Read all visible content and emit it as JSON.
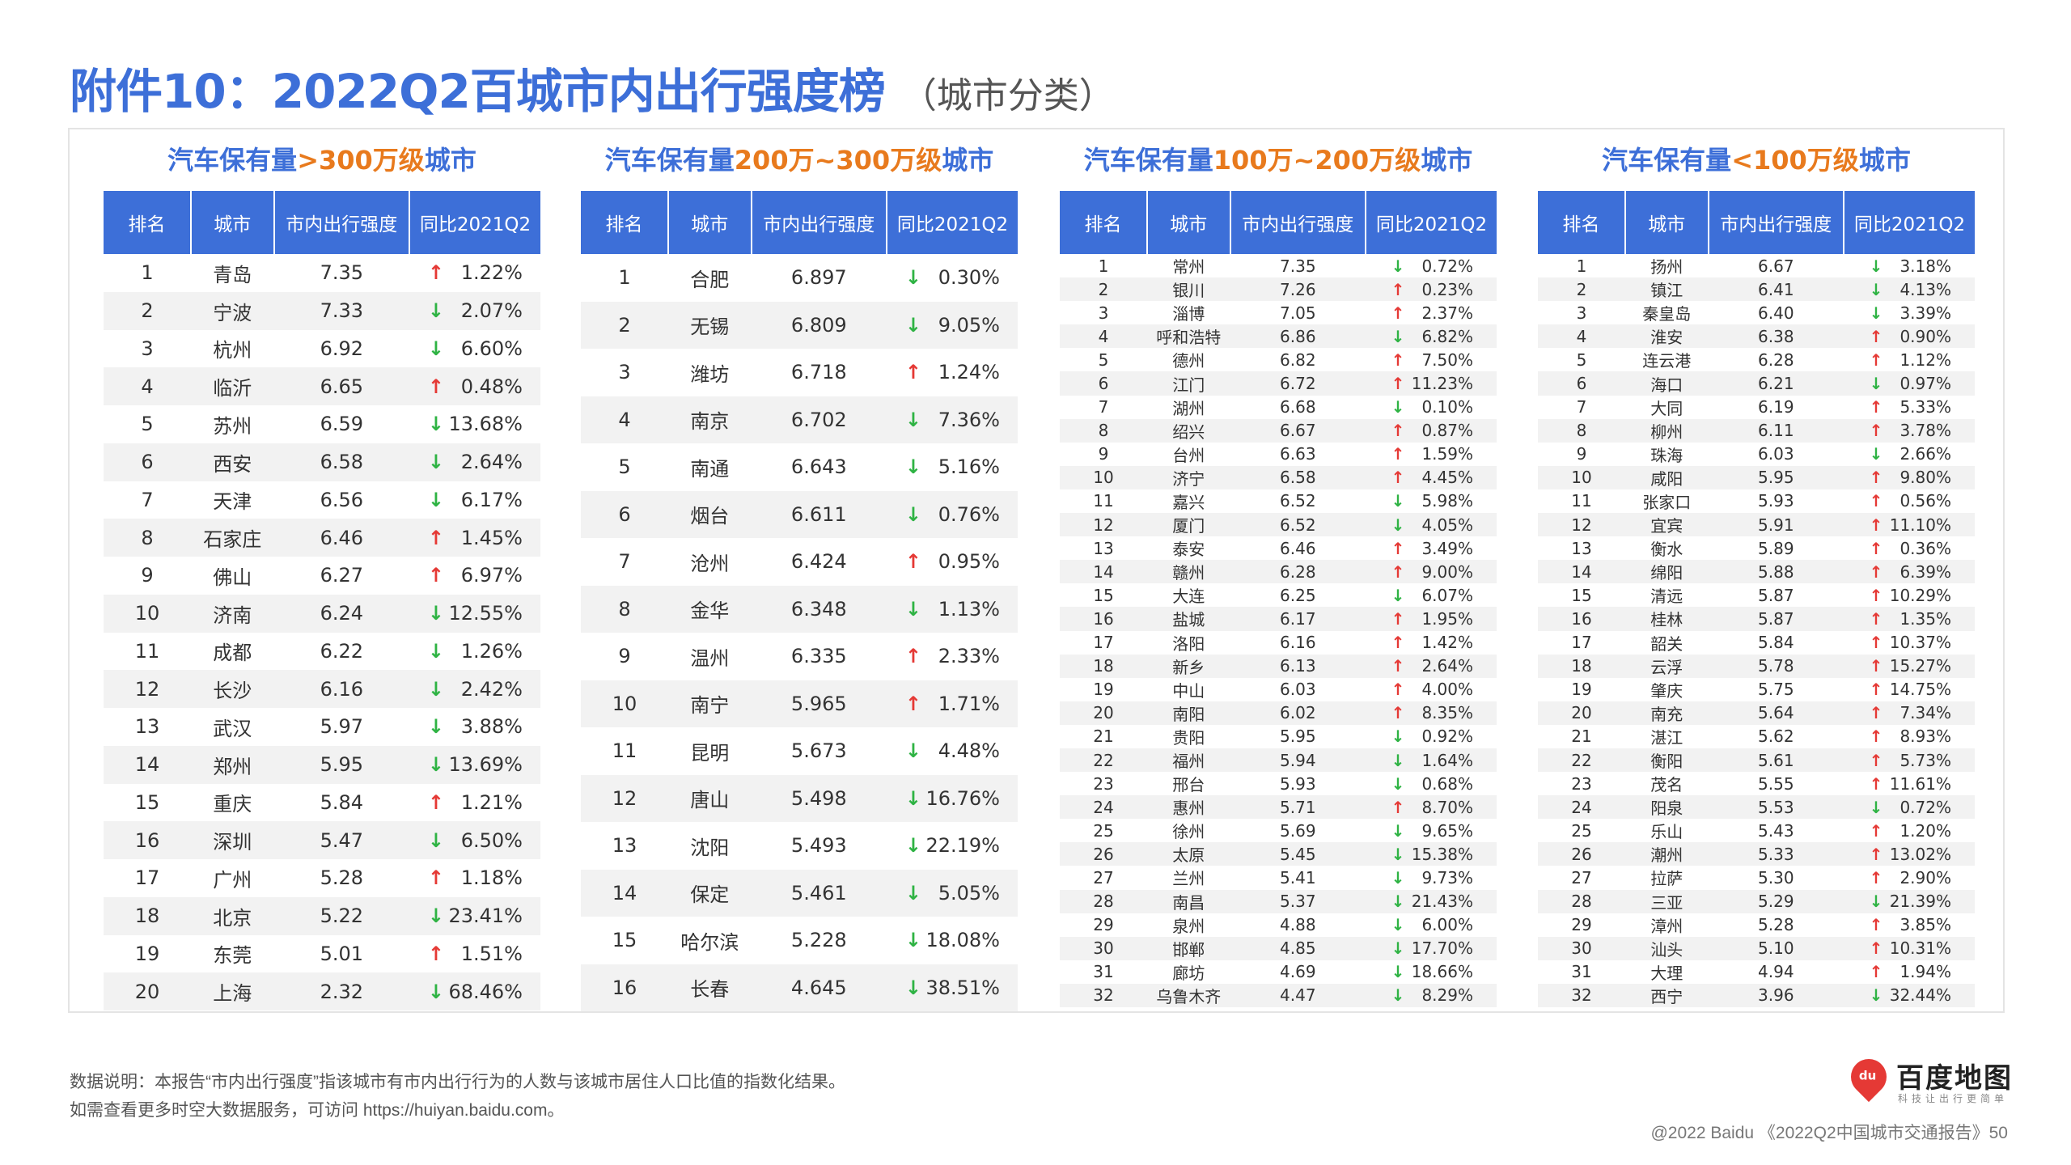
{
  "page": {
    "title": "附件10：2022Q2百城市内出行强度榜",
    "subtitle": "（城市分类）"
  },
  "columns": [
    "排名",
    "城市",
    "市内出行强度",
    "同比2021Q2"
  ],
  "groups": [
    {
      "title_prefix": "汽车保有量",
      "title_highlight": ">300万级",
      "title_suffix": "城市",
      "rows": [
        {
          "rank": "1",
          "city": "青岛",
          "value": "7.35",
          "dir": "up",
          "pct": "1.22%"
        },
        {
          "rank": "2",
          "city": "宁波",
          "value": "7.33",
          "dir": "down",
          "pct": "2.07%"
        },
        {
          "rank": "3",
          "city": "杭州",
          "value": "6.92",
          "dir": "down",
          "pct": "6.60%"
        },
        {
          "rank": "4",
          "city": "临沂",
          "value": "6.65",
          "dir": "up",
          "pct": "0.48%"
        },
        {
          "rank": "5",
          "city": "苏州",
          "value": "6.59",
          "dir": "down",
          "pct": "13.68%"
        },
        {
          "rank": "6",
          "city": "西安",
          "value": "6.58",
          "dir": "down",
          "pct": "2.64%"
        },
        {
          "rank": "7",
          "city": "天津",
          "value": "6.56",
          "dir": "down",
          "pct": "6.17%"
        },
        {
          "rank": "8",
          "city": "石家庄",
          "value": "6.46",
          "dir": "up",
          "pct": "1.45%"
        },
        {
          "rank": "9",
          "city": "佛山",
          "value": "6.27",
          "dir": "up",
          "pct": "6.97%"
        },
        {
          "rank": "10",
          "city": "济南",
          "value": "6.24",
          "dir": "down",
          "pct": "12.55%"
        },
        {
          "rank": "11",
          "city": "成都",
          "value": "6.22",
          "dir": "down",
          "pct": "1.26%"
        },
        {
          "rank": "12",
          "city": "长沙",
          "value": "6.16",
          "dir": "down",
          "pct": "2.42%"
        },
        {
          "rank": "13",
          "city": "武汉",
          "value": "5.97",
          "dir": "down",
          "pct": "3.88%"
        },
        {
          "rank": "14",
          "city": "郑州",
          "value": "5.95",
          "dir": "down",
          "pct": "13.69%"
        },
        {
          "rank": "15",
          "city": "重庆",
          "value": "5.84",
          "dir": "up",
          "pct": "1.21%"
        },
        {
          "rank": "16",
          "city": "深圳",
          "value": "5.47",
          "dir": "down",
          "pct": "6.50%"
        },
        {
          "rank": "17",
          "city": "广州",
          "value": "5.28",
          "dir": "up",
          "pct": "1.18%"
        },
        {
          "rank": "18",
          "city": "北京",
          "value": "5.22",
          "dir": "down",
          "pct": "23.41%"
        },
        {
          "rank": "19",
          "city": "东莞",
          "value": "5.01",
          "dir": "up",
          "pct": "1.51%"
        },
        {
          "rank": "20",
          "city": "上海",
          "value": "2.32",
          "dir": "down",
          "pct": "68.46%"
        }
      ]
    },
    {
      "title_prefix": "汽车保有量",
      "title_highlight": "200万~300万级",
      "title_suffix": "城市",
      "rows": [
        {
          "rank": "1",
          "city": "合肥",
          "value": "6.897",
          "dir": "down",
          "pct": "0.30%"
        },
        {
          "rank": "2",
          "city": "无锡",
          "value": "6.809",
          "dir": "down",
          "pct": "9.05%"
        },
        {
          "rank": "3",
          "city": "潍坊",
          "value": "6.718",
          "dir": "up",
          "pct": "1.24%"
        },
        {
          "rank": "4",
          "city": "南京",
          "value": "6.702",
          "dir": "down",
          "pct": "7.36%"
        },
        {
          "rank": "5",
          "city": "南通",
          "value": "6.643",
          "dir": "down",
          "pct": "5.16%"
        },
        {
          "rank": "6",
          "city": "烟台",
          "value": "6.611",
          "dir": "down",
          "pct": "0.76%"
        },
        {
          "rank": "7",
          "city": "沧州",
          "value": "6.424",
          "dir": "up",
          "pct": "0.95%"
        },
        {
          "rank": "8",
          "city": "金华",
          "value": "6.348",
          "dir": "down",
          "pct": "1.13%"
        },
        {
          "rank": "9",
          "city": "温州",
          "value": "6.335",
          "dir": "up",
          "pct": "2.33%"
        },
        {
          "rank": "10",
          "city": "南宁",
          "value": "5.965",
          "dir": "up",
          "pct": "1.71%"
        },
        {
          "rank": "11",
          "city": "昆明",
          "value": "5.673",
          "dir": "down",
          "pct": "4.48%"
        },
        {
          "rank": "12",
          "city": "唐山",
          "value": "5.498",
          "dir": "down",
          "pct": "16.76%"
        },
        {
          "rank": "13",
          "city": "沈阳",
          "value": "5.493",
          "dir": "down",
          "pct": "22.19%"
        },
        {
          "rank": "14",
          "city": "保定",
          "value": "5.461",
          "dir": "down",
          "pct": "5.05%"
        },
        {
          "rank": "15",
          "city": "哈尔滨",
          "value": "5.228",
          "dir": "down",
          "pct": "18.08%"
        },
        {
          "rank": "16",
          "city": "长春",
          "value": "4.645",
          "dir": "down",
          "pct": "38.51%"
        }
      ]
    },
    {
      "title_prefix": "汽车保有量",
      "title_highlight": "100万~200万级",
      "title_suffix": "城市",
      "rows": [
        {
          "rank": "1",
          "city": "常州",
          "value": "7.35",
          "dir": "down",
          "pct": "0.72%"
        },
        {
          "rank": "2",
          "city": "银川",
          "value": "7.26",
          "dir": "up",
          "pct": "0.23%"
        },
        {
          "rank": "3",
          "city": "淄博",
          "value": "7.05",
          "dir": "up",
          "pct": "2.37%"
        },
        {
          "rank": "4",
          "city": "呼和浩特",
          "value": "6.86",
          "dir": "down",
          "pct": "6.82%"
        },
        {
          "rank": "5",
          "city": "德州",
          "value": "6.82",
          "dir": "up",
          "pct": "7.50%"
        },
        {
          "rank": "6",
          "city": "江门",
          "value": "6.72",
          "dir": "up",
          "pct": "11.23%"
        },
        {
          "rank": "7",
          "city": "湖州",
          "value": "6.68",
          "dir": "down",
          "pct": "0.10%"
        },
        {
          "rank": "8",
          "city": "绍兴",
          "value": "6.67",
          "dir": "up",
          "pct": "0.87%"
        },
        {
          "rank": "9",
          "city": "台州",
          "value": "6.63",
          "dir": "up",
          "pct": "1.59%"
        },
        {
          "rank": "10",
          "city": "济宁",
          "value": "6.58",
          "dir": "up",
          "pct": "4.45%"
        },
        {
          "rank": "11",
          "city": "嘉兴",
          "value": "6.52",
          "dir": "down",
          "pct": "5.98%"
        },
        {
          "rank": "12",
          "city": "厦门",
          "value": "6.52",
          "dir": "down",
          "pct": "4.05%"
        },
        {
          "rank": "13",
          "city": "泰安",
          "value": "6.46",
          "dir": "up",
          "pct": "3.49%"
        },
        {
          "rank": "14",
          "city": "赣州",
          "value": "6.28",
          "dir": "up",
          "pct": "9.00%"
        },
        {
          "rank": "15",
          "city": "大连",
          "value": "6.25",
          "dir": "down",
          "pct": "6.07%"
        },
        {
          "rank": "16",
          "city": "盐城",
          "value": "6.17",
          "dir": "up",
          "pct": "1.95%"
        },
        {
          "rank": "17",
          "city": "洛阳",
          "value": "6.16",
          "dir": "up",
          "pct": "1.42%"
        },
        {
          "rank": "18",
          "city": "新乡",
          "value": "6.13",
          "dir": "up",
          "pct": "2.64%"
        },
        {
          "rank": "19",
          "city": "中山",
          "value": "6.03",
          "dir": "up",
          "pct": "4.00%"
        },
        {
          "rank": "20",
          "city": "南阳",
          "value": "6.02",
          "dir": "up",
          "pct": "8.35%"
        },
        {
          "rank": "21",
          "city": "贵阳",
          "value": "5.95",
          "dir": "down",
          "pct": "0.92%"
        },
        {
          "rank": "22",
          "city": "福州",
          "value": "5.94",
          "dir": "down",
          "pct": "1.64%"
        },
        {
          "rank": "23",
          "city": "邢台",
          "value": "5.93",
          "dir": "down",
          "pct": "0.68%"
        },
        {
          "rank": "24",
          "city": "惠州",
          "value": "5.71",
          "dir": "up",
          "pct": "8.70%"
        },
        {
          "rank": "25",
          "city": "徐州",
          "value": "5.69",
          "dir": "down",
          "pct": "9.65%"
        },
        {
          "rank": "26",
          "city": "太原",
          "value": "5.45",
          "dir": "down",
          "pct": "15.38%"
        },
        {
          "rank": "27",
          "city": "兰州",
          "value": "5.41",
          "dir": "down",
          "pct": "9.73%"
        },
        {
          "rank": "28",
          "city": "南昌",
          "value": "5.37",
          "dir": "down",
          "pct": "21.43%"
        },
        {
          "rank": "29",
          "city": "泉州",
          "value": "4.88",
          "dir": "down",
          "pct": "6.00%"
        },
        {
          "rank": "30",
          "city": "邯郸",
          "value": "4.85",
          "dir": "down",
          "pct": "17.70%"
        },
        {
          "rank": "31",
          "city": "廊坊",
          "value": "4.69",
          "dir": "down",
          "pct": "18.66%"
        },
        {
          "rank": "32",
          "city": "乌鲁木齐",
          "value": "4.47",
          "dir": "down",
          "pct": "8.29%"
        }
      ]
    },
    {
      "title_prefix": "汽车保有量",
      "title_highlight": "<100万级",
      "title_suffix": "城市",
      "rows": [
        {
          "rank": "1",
          "city": "扬州",
          "value": "6.67",
          "dir": "down",
          "pct": "3.18%"
        },
        {
          "rank": "2",
          "city": "镇江",
          "value": "6.41",
          "dir": "down",
          "pct": "4.13%"
        },
        {
          "rank": "3",
          "city": "秦皇岛",
          "value": "6.40",
          "dir": "down",
          "pct": "3.39%"
        },
        {
          "rank": "4",
          "city": "淮安",
          "value": "6.38",
          "dir": "up",
          "pct": "0.90%"
        },
        {
          "rank": "5",
          "city": "连云港",
          "value": "6.28",
          "dir": "up",
          "pct": "1.12%"
        },
        {
          "rank": "6",
          "city": "海口",
          "value": "6.21",
          "dir": "down",
          "pct": "0.97%"
        },
        {
          "rank": "7",
          "city": "大同",
          "value": "6.19",
          "dir": "up",
          "pct": "5.33%"
        },
        {
          "rank": "8",
          "city": "柳州",
          "value": "6.11",
          "dir": "up",
          "pct": "3.78%"
        },
        {
          "rank": "9",
          "city": "珠海",
          "value": "6.03",
          "dir": "down",
          "pct": "2.66%"
        },
        {
          "rank": "10",
          "city": "咸阳",
          "value": "5.95",
          "dir": "up",
          "pct": "9.80%"
        },
        {
          "rank": "11",
          "city": "张家口",
          "value": "5.93",
          "dir": "up",
          "pct": "0.56%"
        },
        {
          "rank": "12",
          "city": "宜宾",
          "value": "5.91",
          "dir": "up",
          "pct": "11.10%"
        },
        {
          "rank": "13",
          "city": "衡水",
          "value": "5.89",
          "dir": "up",
          "pct": "0.36%"
        },
        {
          "rank": "14",
          "city": "绵阳",
          "value": "5.88",
          "dir": "up",
          "pct": "6.39%"
        },
        {
          "rank": "15",
          "city": "清远",
          "value": "5.87",
          "dir": "up",
          "pct": "10.29%"
        },
        {
          "rank": "16",
          "city": "桂林",
          "value": "5.87",
          "dir": "up",
          "pct": "1.35%"
        },
        {
          "rank": "17",
          "city": "韶关",
          "value": "5.84",
          "dir": "up",
          "pct": "10.37%"
        },
        {
          "rank": "18",
          "city": "云浮",
          "value": "5.78",
          "dir": "up",
          "pct": "15.27%"
        },
        {
          "rank": "19",
          "city": "肇庆",
          "value": "5.75",
          "dir": "up",
          "pct": "14.75%"
        },
        {
          "rank": "20",
          "city": "南充",
          "value": "5.64",
          "dir": "up",
          "pct": "7.34%"
        },
        {
          "rank": "21",
          "city": "湛江",
          "value": "5.62",
          "dir": "up",
          "pct": "8.93%"
        },
        {
          "rank": "22",
          "city": "衡阳",
          "value": "5.61",
          "dir": "up",
          "pct": "5.73%"
        },
        {
          "rank": "23",
          "city": "茂名",
          "value": "5.55",
          "dir": "up",
          "pct": "11.61%"
        },
        {
          "rank": "24",
          "city": "阳泉",
          "value": "5.53",
          "dir": "down",
          "pct": "0.72%"
        },
        {
          "rank": "25",
          "city": "乐山",
          "value": "5.43",
          "dir": "up",
          "pct": "1.20%"
        },
        {
          "rank": "26",
          "city": "潮州",
          "value": "5.33",
          "dir": "up",
          "pct": "13.02%"
        },
        {
          "rank": "27",
          "city": "拉萨",
          "value": "5.30",
          "dir": "up",
          "pct": "2.90%"
        },
        {
          "rank": "28",
          "city": "三亚",
          "value": "5.29",
          "dir": "down",
          "pct": "21.39%"
        },
        {
          "rank": "29",
          "city": "漳州",
          "value": "5.28",
          "dir": "up",
          "pct": "3.85%"
        },
        {
          "rank": "30",
          "city": "汕头",
          "value": "5.10",
          "dir": "up",
          "pct": "10.31%"
        },
        {
          "rank": "31",
          "city": "大理",
          "value": "4.94",
          "dir": "up",
          "pct": "1.94%"
        },
        {
          "rank": "32",
          "city": "西宁",
          "value": "3.96",
          "dir": "down",
          "pct": "32.44%"
        }
      ]
    }
  ],
  "notes": [
    "数据说明：本报告“市内出行强度”指该城市有市内出行行为的人数与该城市居住人口比值的指数化结果。",
    "如需查看更多时空大数据服务，可访问 https://huiyan.baidu.com。"
  ],
  "logo": {
    "pin_text": "du",
    "name": "百度地图",
    "slogan": "科技让出行更简单"
  },
  "footer": "@2022 Baidu 《2022Q2中国城市交通报告》50",
  "colors": {
    "brand_blue": "#3d6fd8",
    "highlight_orange": "#e87a1d",
    "up_red": "#e53935",
    "down_green": "#2fb344"
  },
  "icons": {
    "up": "arrow-up-icon",
    "down": "arrow-down-icon"
  }
}
